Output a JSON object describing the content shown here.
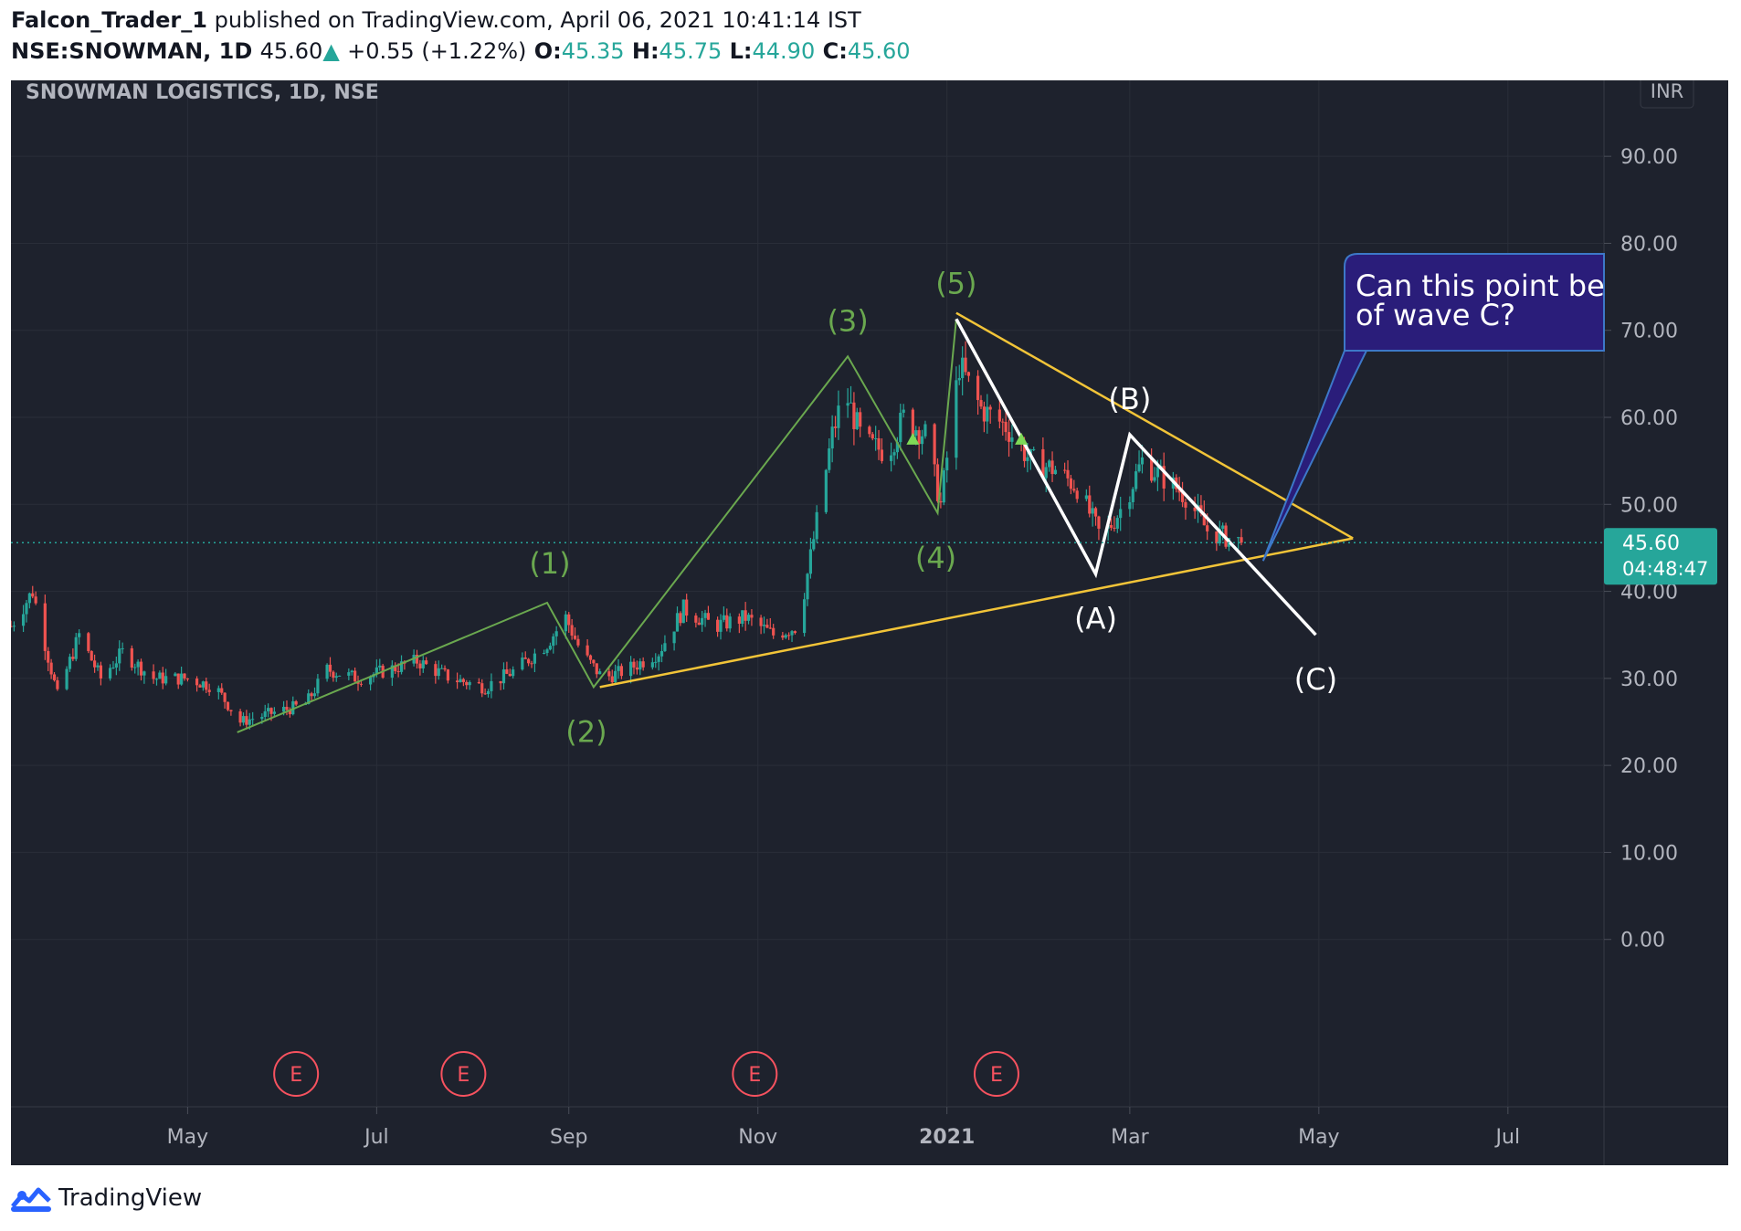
{
  "publish_line": {
    "author": "Falcon_Trader_1",
    "rest": " published on TradingView.com, April 06, 2021 10:41:14 IST"
  },
  "quote_line": {
    "symbol": "NSE:SNOWMAN, 1D",
    "last": "45.60",
    "up_arrow": "▲",
    "change": "+0.55 (+1.22%)",
    "o_label": "O:",
    "o_value": "45.35",
    "h_label": "H:",
    "h_value": "45.75",
    "l_label": "L:",
    "l_value": "44.90",
    "c_label": "C:",
    "c_value": "45.60"
  },
  "footer": {
    "brand": "TradingView",
    "logo_icon": "tradingview-logo-icon"
  },
  "colors": {
    "background": "#1e222d",
    "grid": "#2a2e39",
    "up": "#26a69a",
    "down": "#ef5350",
    "impulse": "#6aa84f",
    "trendline_yellow": "#f2c438",
    "wave_white": "#ffffff",
    "callout_bg": "#2a1d7a",
    "callout_border": "#3d78c8",
    "price_badge": "#26a69a"
  },
  "chart_data": {
    "type": "candlestick",
    "title": "SNOWMAN LOGISTICS, 1D, NSE",
    "currency": "INR",
    "ylim": [
      -10,
      96
    ],
    "y_ticks": [
      0,
      10,
      20,
      30,
      40,
      50,
      60,
      70,
      80,
      90
    ],
    "y_tick_labels": [
      "0.00",
      "10.00",
      "20.00",
      "30.00",
      "40.00",
      "50.00",
      "60.00",
      "70.00",
      "80.00",
      "90.00"
    ],
    "x_range": [
      "2020-03-05",
      "2021-08-01"
    ],
    "x_ticks": [
      {
        "date": "2020-05-01",
        "label": "May"
      },
      {
        "date": "2020-07-01",
        "label": "Jul"
      },
      {
        "date": "2020-09-01",
        "label": "Sep"
      },
      {
        "date": "2020-11-01",
        "label": "Nov"
      },
      {
        "date": "2021-01-01",
        "label": "2021"
      },
      {
        "date": "2021-03-01",
        "label": "Mar"
      },
      {
        "date": "2021-05-01",
        "label": "May"
      },
      {
        "date": "2021-07-01",
        "label": "Jul"
      }
    ],
    "last_price": {
      "value": 45.6,
      "label": "45.60",
      "countdown": "04:48:47"
    },
    "earnings_markers": [
      {
        "date": "2020-06-05",
        "label": "E"
      },
      {
        "date": "2020-07-29",
        "label": "E"
      },
      {
        "date": "2020-10-31",
        "label": "E"
      },
      {
        "date": "2021-01-17",
        "label": "E"
      }
    ],
    "price_path": [
      [
        "2020-03-05",
        36
      ],
      [
        "2020-03-12",
        40
      ],
      [
        "2020-03-20",
        28
      ],
      [
        "2020-03-27",
        35
      ],
      [
        "2020-04-03",
        30
      ],
      [
        "2020-04-10",
        33
      ],
      [
        "2020-04-20",
        30
      ],
      [
        "2020-05-01",
        30
      ],
      [
        "2020-05-10",
        29
      ],
      [
        "2020-05-18",
        25
      ],
      [
        "2020-05-28",
        26
      ],
      [
        "2020-06-08",
        27
      ],
      [
        "2020-06-15",
        31
      ],
      [
        "2020-06-25",
        30
      ],
      [
        "2020-07-05",
        31
      ],
      [
        "2020-07-14",
        32
      ],
      [
        "2020-07-25",
        30
      ],
      [
        "2020-08-05",
        29
      ],
      [
        "2020-08-15",
        31
      ],
      [
        "2020-08-25",
        34
      ],
      [
        "2020-08-31",
        37
      ],
      [
        "2020-09-05",
        33
      ],
      [
        "2020-09-12",
        30
      ],
      [
        "2020-09-20",
        31
      ],
      [
        "2020-09-30",
        33
      ],
      [
        "2020-10-08",
        38
      ],
      [
        "2020-10-18",
        36
      ],
      [
        "2020-10-28",
        37
      ],
      [
        "2020-11-06",
        35
      ],
      [
        "2020-11-14",
        36
      ],
      [
        "2020-11-20",
        48
      ],
      [
        "2020-11-25",
        58
      ],
      [
        "2020-11-29",
        63
      ],
      [
        "2020-12-05",
        57
      ],
      [
        "2020-12-13",
        56
      ],
      [
        "2020-12-18",
        60
      ],
      [
        "2020-12-25",
        58
      ],
      [
        "2020-12-30",
        50
      ],
      [
        "2021-01-05",
        66
      ],
      [
        "2021-01-12",
        61
      ],
      [
        "2021-01-20",
        59
      ],
      [
        "2021-01-28",
        55
      ],
      [
        "2021-02-05",
        54
      ],
      [
        "2021-02-12",
        52
      ],
      [
        "2021-02-20",
        46
      ],
      [
        "2021-02-27",
        50
      ],
      [
        "2021-03-05",
        55
      ],
      [
        "2021-03-12",
        53
      ],
      [
        "2021-03-19",
        51
      ],
      [
        "2021-03-26",
        47
      ],
      [
        "2021-04-06",
        45.6
      ]
    ],
    "wave_labels": [
      {
        "label": "(1)",
        "date": "2020-08-25",
        "price": 38.7,
        "series": "impulse"
      },
      {
        "label": "(2)",
        "date": "2020-09-09",
        "price": 29.0,
        "series": "impulse"
      },
      {
        "label": "(3)",
        "date": "2020-11-30",
        "price": 67.0,
        "series": "impulse"
      },
      {
        "label": "(4)",
        "date": "2020-12-29",
        "price": 49.0,
        "series": "impulse"
      },
      {
        "label": "(5)",
        "date": "2021-01-04",
        "price": 71.3,
        "series": "impulse"
      },
      {
        "label": "(A)",
        "date": "2021-02-18",
        "price": 42.0,
        "series": "correction"
      },
      {
        "label": "(B)",
        "date": "2021-03-01",
        "price": 58.0,
        "series": "correction"
      },
      {
        "label": "(C)",
        "date": "2021-04-30",
        "price": 35.0,
        "series": "correction"
      }
    ],
    "impulse_path": [
      [
        "2020-05-17",
        23.8
      ],
      [
        "2020-08-25",
        38.7
      ],
      [
        "2020-09-09",
        29.0
      ],
      [
        "2020-11-30",
        67.0
      ],
      [
        "2020-12-29",
        49.0
      ],
      [
        "2021-01-04",
        71.3
      ]
    ],
    "correction_path": [
      [
        "2021-01-04",
        71.3
      ],
      [
        "2021-02-18",
        42.0
      ],
      [
        "2021-03-01",
        58.0
      ],
      [
        "2021-04-30",
        35.0
      ]
    ],
    "trendlines": [
      {
        "color": "yellow",
        "from": [
          "2020-09-11",
          29.0
        ],
        "to": [
          "2021-05-12",
          46.1
        ]
      },
      {
        "color": "yellow",
        "from": [
          "2021-01-04",
          72.0
        ],
        "to": [
          "2021-05-12",
          46.1
        ]
      }
    ],
    "callout": {
      "text_line1": "Can this point be",
      "text_line2": "of wave C?",
      "anchor": [
        "2021-04-13",
        43.5
      ]
    }
  }
}
